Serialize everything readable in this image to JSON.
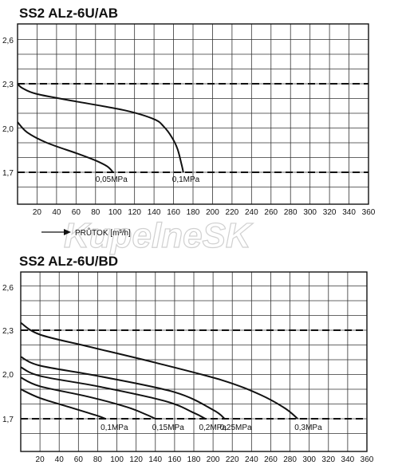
{
  "watermark": "KupelneSK",
  "flow_label": "PRŮTOK [m³/h]",
  "chart_data": [
    {
      "type": "line",
      "title": "SS2 ALz-6U/AB",
      "xlabel": "PRŮTOK [m³/h]",
      "ylabel": "",
      "xlim": [
        0,
        360
      ],
      "ylim": [
        1.55,
        2.72
      ],
      "x_ticks": [
        "20",
        "40",
        "60",
        "80",
        "100",
        "120",
        "140",
        "160",
        "180",
        "200",
        "220",
        "240",
        "260",
        "280",
        "300",
        "320",
        "340",
        "360"
      ],
      "y_ticks": [
        "1,7",
        "2,0",
        "2,3",
        "2,6"
      ],
      "reference_lines": [
        1.7,
        2.3
      ],
      "grid": true,
      "series": [
        {
          "name": "0,05MPa",
          "x": [
            0,
            10,
            30,
            60,
            80,
            92,
            98
          ],
          "y": [
            2.04,
            1.97,
            1.9,
            1.83,
            1.78,
            1.74,
            1.7
          ]
        },
        {
          "name": "0,1MPa",
          "x": [
            0,
            5,
            20,
            60,
            110,
            140,
            150,
            158,
            164,
            168,
            170
          ],
          "y": [
            2.3,
            2.27,
            2.23,
            2.18,
            2.12,
            2.06,
            2.01,
            1.94,
            1.86,
            1.76,
            1.7
          ]
        }
      ]
    },
    {
      "type": "line",
      "title": "SS2 ALz-6U/BD",
      "xlabel": "",
      "ylabel": "",
      "xlim": [
        0,
        360
      ],
      "ylim": [
        1.55,
        2.72
      ],
      "x_ticks": [
        "20",
        "40",
        "60",
        "80",
        "100",
        "120",
        "140",
        "160",
        "180",
        "200",
        "220",
        "240",
        "260",
        "280",
        "300",
        "320",
        "340",
        "360"
      ],
      "y_ticks": [
        "1,7",
        "2,0",
        "2,3",
        "2,6"
      ],
      "reference_lines": [
        1.7,
        2.3
      ],
      "grid": true,
      "series": [
        {
          "name": "0,1MPa",
          "x": [
            0,
            20,
            50,
            70,
            80,
            88
          ],
          "y": [
            1.9,
            1.84,
            1.78,
            1.74,
            1.72,
            1.7
          ]
        },
        {
          "name": "0,15MPa",
          "x": [
            0,
            20,
            70,
            110,
            130,
            140
          ],
          "y": [
            1.98,
            1.92,
            1.85,
            1.78,
            1.73,
            1.7
          ]
        },
        {
          "name": "0,2MPa",
          "x": [
            0,
            20,
            80,
            150,
            180,
            192
          ],
          "y": [
            2.05,
            1.99,
            1.92,
            1.82,
            1.74,
            1.7
          ]
        },
        {
          "name": "0,25MPa",
          "x": [
            0,
            20,
            80,
            160,
            200,
            212
          ],
          "y": [
            2.12,
            2.06,
            1.99,
            1.88,
            1.76,
            1.7
          ]
        },
        {
          "name": "0,3MPa",
          "x": [
            0,
            20,
            70,
            140,
            210,
            250,
            275,
            288
          ],
          "y": [
            2.35,
            2.27,
            2.19,
            2.08,
            1.96,
            1.86,
            1.77,
            1.7
          ]
        }
      ]
    }
  ]
}
